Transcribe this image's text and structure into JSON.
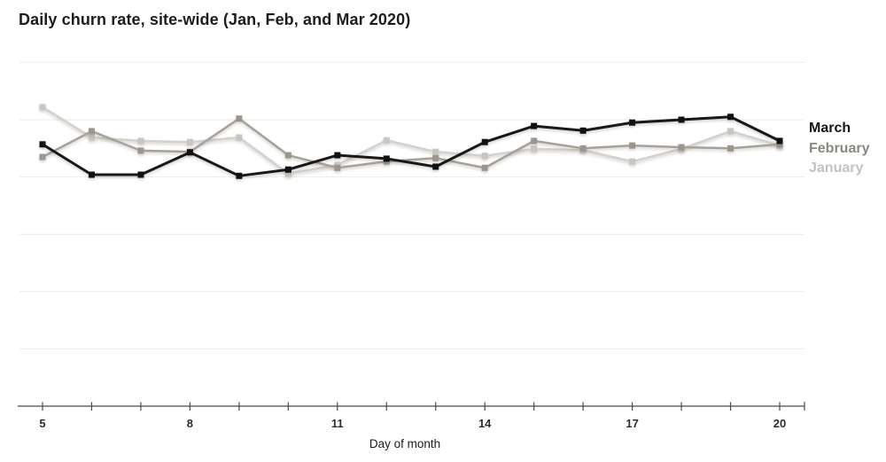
{
  "title": "Daily churn rate, site-wide (Jan, Feb, and Mar 2020)",
  "chart_data": {
    "type": "line",
    "title": "Daily churn rate, site-wide (Jan, Feb, and Mar 2020)",
    "xlabel": "Day of month",
    "ylabel": "",
    "x": [
      5,
      6,
      7,
      8,
      9,
      10,
      11,
      12,
      13,
      14,
      15,
      16,
      17,
      18,
      19,
      20
    ],
    "x_labeled_ticks": [
      5,
      8,
      11,
      14,
      17,
      20
    ],
    "x_tick_labels": [
      "5",
      "8",
      "11",
      "14",
      "17",
      "20"
    ],
    "ylim": [
      0,
      6.5
    ],
    "y_gridline_values": [
      1,
      2,
      3,
      4,
      5,
      6
    ],
    "y_tick_labels_visible": false,
    "grid": "horizontal",
    "marker": "square",
    "legend_position": "right",
    "series": [
      {
        "name": "January",
        "line_color": "#d4d1cc",
        "marker_color": "#c9c6c1",
        "line_width": 2.5,
        "values": [
          5.22,
          4.69,
          4.63,
          4.61,
          4.69,
          4.06,
          4.21,
          4.64,
          4.44,
          4.37,
          4.49,
          4.47,
          4.27,
          4.49,
          4.8,
          4.55
        ]
      },
      {
        "name": "February",
        "line_color": "#a7a19b",
        "marker_color": "#9b958d",
        "line_width": 2.5,
        "values": [
          4.35,
          4.8,
          4.46,
          4.44,
          5.02,
          4.38,
          4.16,
          4.27,
          4.33,
          4.16,
          4.63,
          4.5,
          4.55,
          4.52,
          4.5,
          4.57
        ]
      },
      {
        "name": "March",
        "line_color": "#191919",
        "marker_color": "#111111",
        "line_width": 3,
        "values": [
          4.57,
          4.04,
          4.04,
          4.43,
          4.02,
          4.13,
          4.38,
          4.32,
          4.18,
          4.61,
          4.89,
          4.81,
          4.95,
          5.0,
          5.05,
          4.63
        ]
      }
    ]
  },
  "legend": {
    "items": [
      {
        "label": "March",
        "color": "#151515"
      },
      {
        "label": "February",
        "color": "#8b8680"
      },
      {
        "label": "January",
        "color": "#c5c2bd"
      }
    ]
  }
}
